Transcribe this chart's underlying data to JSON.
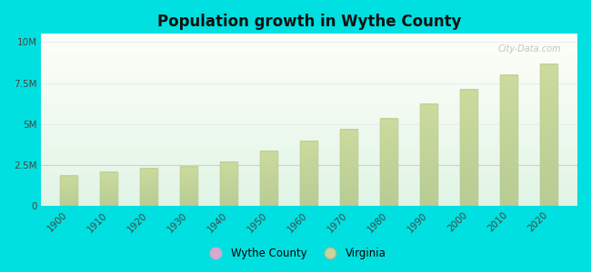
{
  "title": "Population growth in Wythe County",
  "years": [
    1900,
    1910,
    1920,
    1930,
    1940,
    1950,
    1960,
    1970,
    1980,
    1990,
    2000,
    2010,
    2020
  ],
  "virginia_pop": [
    1854184,
    2061612,
    2309187,
    2421851,
    2677773,
    3318680,
    3966949,
    4651448,
    5346818,
    6187358,
    7078515,
    8001024,
    8631393
  ],
  "outer_bg": "#00e0e0",
  "plot_bg_topleft": "#c8eedd",
  "plot_bg_topright": "#f0faf8",
  "plot_bg_bottom": "#b0dcc8",
  "bar_color": "#c8d4a0",
  "bar_edge_color": "#b0bc88",
  "grid_color": "#e8e8f0",
  "pink_line_color": "#f0c0d0",
  "yticks": [
    0,
    2500000,
    5000000,
    7500000,
    10000000
  ],
  "ytick_labels": [
    "0",
    "2.5M",
    "5M",
    "7.5M",
    "10M"
  ],
  "ylim": [
    0,
    10500000
  ],
  "legend_wythe_color": "#d8a8d0",
  "legend_virginia_color": "#c8d4a0",
  "watermark": "City-Data.com",
  "bar_width": 0.45
}
